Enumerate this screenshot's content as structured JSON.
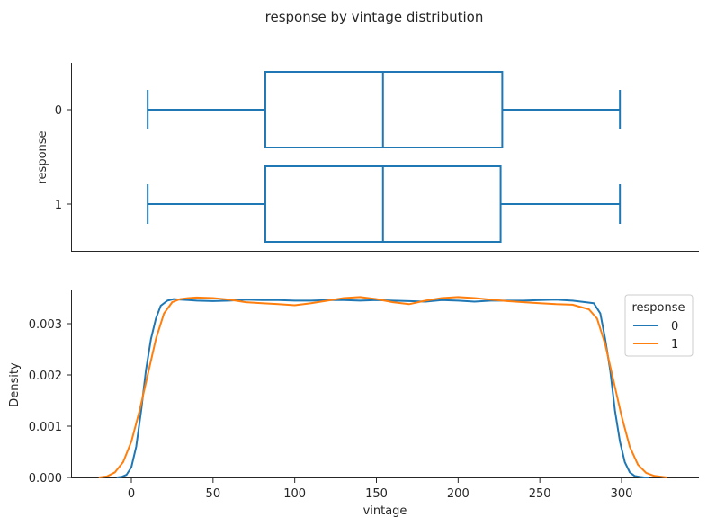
{
  "chart_data": [
    {
      "type": "box",
      "title": "response by vintage distribution",
      "xlabel": "",
      "ylabel": "response",
      "xlim": [
        -37,
        345
      ],
      "categories": [
        "0",
        "1"
      ],
      "boxes": [
        {
          "category": "0",
          "min": 10,
          "q1": 82,
          "median": 154,
          "q3": 227,
          "max": 299
        },
        {
          "category": "1",
          "min": 10,
          "q1": 82,
          "median": 154,
          "q3": 226,
          "max": 299
        }
      ],
      "color": "#1f77b4"
    },
    {
      "type": "line",
      "subtype": "kde",
      "xlabel": "vintage",
      "ylabel": "Density",
      "xlim": [
        -37,
        345
      ],
      "ylim": [
        0,
        0.0037
      ],
      "xticks": [
        "0",
        "50",
        "100",
        "150",
        "200",
        "250",
        "300"
      ],
      "yticks": [
        "0.000",
        "0.001",
        "0.002",
        "0.003"
      ],
      "legend": {
        "title": "response",
        "position": "top-right",
        "entries": [
          "0",
          "1"
        ]
      },
      "series": [
        {
          "name": "0",
          "color": "#1f77b4",
          "x": [
            -9,
            -6,
            -3,
            0,
            3,
            6,
            9,
            12,
            15,
            18,
            22,
            26,
            30,
            35,
            40,
            50,
            60,
            70,
            80,
            90,
            100,
            110,
            120,
            130,
            140,
            150,
            160,
            170,
            180,
            190,
            200,
            210,
            220,
            230,
            240,
            250,
            260,
            270,
            278,
            283,
            287,
            290,
            293,
            296,
            299,
            302,
            305,
            308,
            311,
            314,
            317
          ],
          "y": [
            0.0,
            1e-05,
            5e-05,
            0.0002,
            0.0006,
            0.0013,
            0.0021,
            0.0027,
            0.0031,
            0.00335,
            0.00345,
            0.00348,
            0.00347,
            0.00346,
            0.00345,
            0.00344,
            0.00345,
            0.00347,
            0.00346,
            0.00346,
            0.00345,
            0.00345,
            0.00346,
            0.00346,
            0.00345,
            0.00346,
            0.00345,
            0.00344,
            0.00343,
            0.00346,
            0.00345,
            0.00343,
            0.00345,
            0.00345,
            0.00345,
            0.00346,
            0.00347,
            0.00345,
            0.00342,
            0.0034,
            0.0032,
            0.0027,
            0.0021,
            0.0013,
            0.0007,
            0.0003,
            0.0001,
            3e-05,
            1e-05,
            0.0,
            0.0
          ]
        },
        {
          "name": "1",
          "color": "#ff7f0e",
          "x": [
            -20,
            -15,
            -10,
            -5,
            0,
            5,
            10,
            15,
            20,
            25,
            30,
            35,
            40,
            50,
            60,
            70,
            80,
            90,
            100,
            110,
            120,
            130,
            140,
            150,
            160,
            170,
            180,
            190,
            200,
            210,
            220,
            230,
            240,
            250,
            260,
            270,
            280,
            285,
            290,
            295,
            300,
            305,
            310,
            315,
            320,
            325,
            328
          ],
          "y": [
            0.0,
            2e-05,
            0.0001,
            0.0003,
            0.0007,
            0.0013,
            0.002,
            0.0027,
            0.0032,
            0.00342,
            0.00348,
            0.0035,
            0.00351,
            0.0035,
            0.00347,
            0.00342,
            0.0034,
            0.00338,
            0.00336,
            0.0034,
            0.00345,
            0.0035,
            0.00352,
            0.00348,
            0.00342,
            0.00338,
            0.00345,
            0.0035,
            0.00352,
            0.0035,
            0.00347,
            0.00344,
            0.00342,
            0.0034,
            0.00338,
            0.00337,
            0.00328,
            0.0031,
            0.0026,
            0.0019,
            0.0012,
            0.0006,
            0.00025,
            9e-05,
            3e-05,
            1e-05,
            0.0
          ]
        }
      ]
    }
  ]
}
